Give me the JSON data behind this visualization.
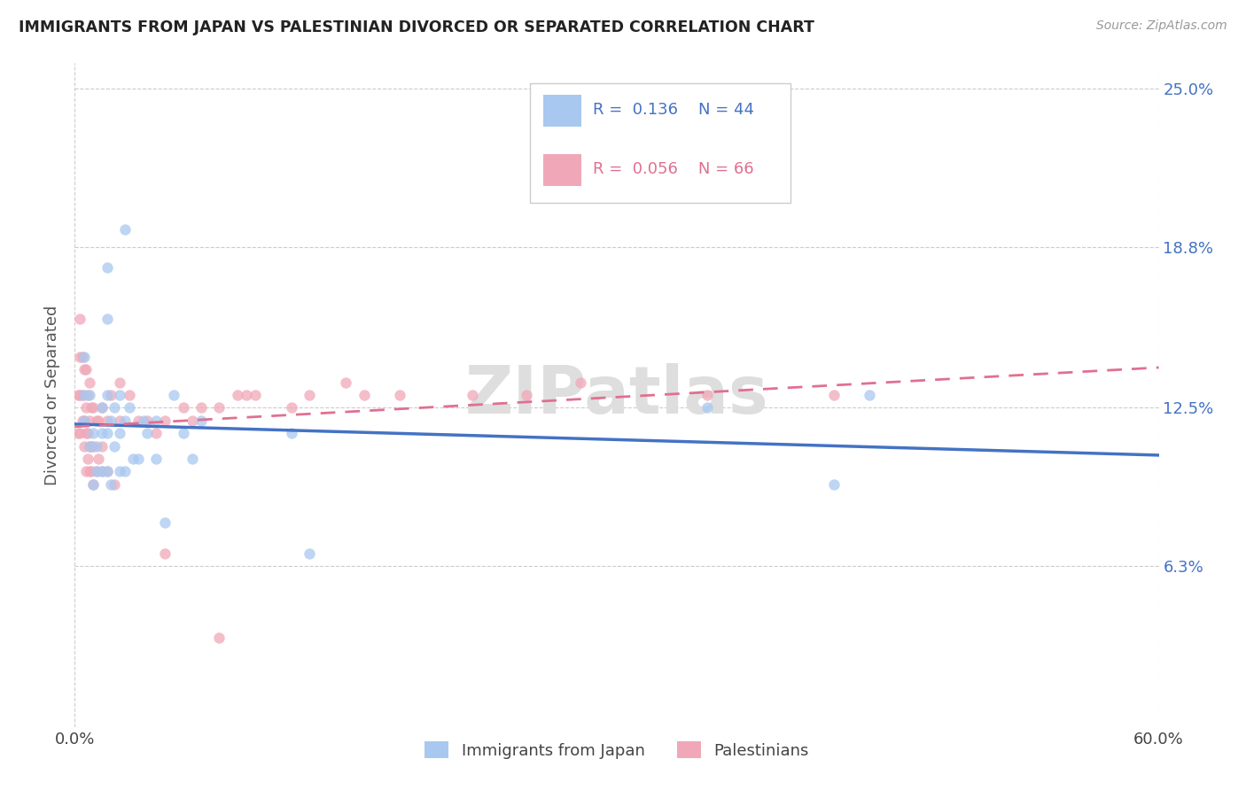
{
  "title": "IMMIGRANTS FROM JAPAN VS PALESTINIAN DIVORCED OR SEPARATED CORRELATION CHART",
  "source": "Source: ZipAtlas.com",
  "ylabel_label": "Divorced or Separated",
  "legend_label1": "Immigrants from Japan",
  "legend_label2": "Palestinians",
  "R1": 0.136,
  "N1": 44,
  "R2": 0.056,
  "N2": 66,
  "color1": "#a8c8f0",
  "color2": "#f0a8b8",
  "line_color1": "#4472c4",
  "line_color2": "#e07090",
  "xmin": 0.0,
  "xmax": 0.6,
  "ymin": 0.0,
  "ymax": 0.26,
  "ytick_vals": [
    0.0,
    0.063,
    0.125,
    0.188,
    0.25
  ],
  "ytick_labels": [
    "",
    "6.3%",
    "12.5%",
    "18.8%",
    "25.0%"
  ],
  "scatter_japan_x": [
    0.005,
    0.005,
    0.005,
    0.008,
    0.008,
    0.01,
    0.01,
    0.012,
    0.012,
    0.015,
    0.015,
    0.015,
    0.018,
    0.018,
    0.018,
    0.018,
    0.018,
    0.02,
    0.02,
    0.022,
    0.022,
    0.025,
    0.025,
    0.025,
    0.028,
    0.028,
    0.028,
    0.03,
    0.032,
    0.035,
    0.038,
    0.04,
    0.045,
    0.045,
    0.05,
    0.055,
    0.06,
    0.065,
    0.07,
    0.12,
    0.13,
    0.35,
    0.42,
    0.44
  ],
  "scatter_japan_y": [
    0.13,
    0.145,
    0.12,
    0.11,
    0.13,
    0.115,
    0.095,
    0.1,
    0.11,
    0.115,
    0.125,
    0.1,
    0.1,
    0.115,
    0.13,
    0.16,
    0.18,
    0.095,
    0.12,
    0.11,
    0.125,
    0.1,
    0.115,
    0.13,
    0.1,
    0.12,
    0.195,
    0.125,
    0.105,
    0.105,
    0.12,
    0.115,
    0.12,
    0.105,
    0.08,
    0.13,
    0.115,
    0.105,
    0.12,
    0.115,
    0.068,
    0.125,
    0.095,
    0.13
  ],
  "scatter_pal_x": [
    0.002,
    0.002,
    0.003,
    0.003,
    0.003,
    0.003,
    0.004,
    0.004,
    0.004,
    0.005,
    0.005,
    0.005,
    0.006,
    0.006,
    0.006,
    0.006,
    0.007,
    0.007,
    0.007,
    0.008,
    0.008,
    0.008,
    0.008,
    0.009,
    0.009,
    0.009,
    0.01,
    0.01,
    0.01,
    0.012,
    0.012,
    0.013,
    0.013,
    0.015,
    0.015,
    0.015,
    0.018,
    0.018,
    0.02,
    0.022,
    0.025,
    0.025,
    0.03,
    0.035,
    0.04,
    0.045,
    0.05,
    0.06,
    0.065,
    0.07,
    0.08,
    0.09,
    0.095,
    0.1,
    0.12,
    0.13,
    0.15,
    0.16,
    0.18,
    0.22,
    0.25,
    0.28,
    0.35,
    0.42,
    0.05,
    0.08
  ],
  "scatter_pal_y": [
    0.115,
    0.13,
    0.115,
    0.13,
    0.145,
    0.16,
    0.12,
    0.13,
    0.145,
    0.11,
    0.12,
    0.14,
    0.1,
    0.115,
    0.125,
    0.14,
    0.105,
    0.115,
    0.13,
    0.1,
    0.11,
    0.12,
    0.135,
    0.1,
    0.11,
    0.125,
    0.095,
    0.11,
    0.125,
    0.1,
    0.12,
    0.105,
    0.12,
    0.1,
    0.11,
    0.125,
    0.1,
    0.12,
    0.13,
    0.095,
    0.12,
    0.135,
    0.13,
    0.12,
    0.12,
    0.115,
    0.12,
    0.125,
    0.12,
    0.125,
    0.125,
    0.13,
    0.13,
    0.13,
    0.125,
    0.13,
    0.135,
    0.13,
    0.13,
    0.13,
    0.13,
    0.135,
    0.13,
    0.13,
    0.068,
    0.035
  ]
}
